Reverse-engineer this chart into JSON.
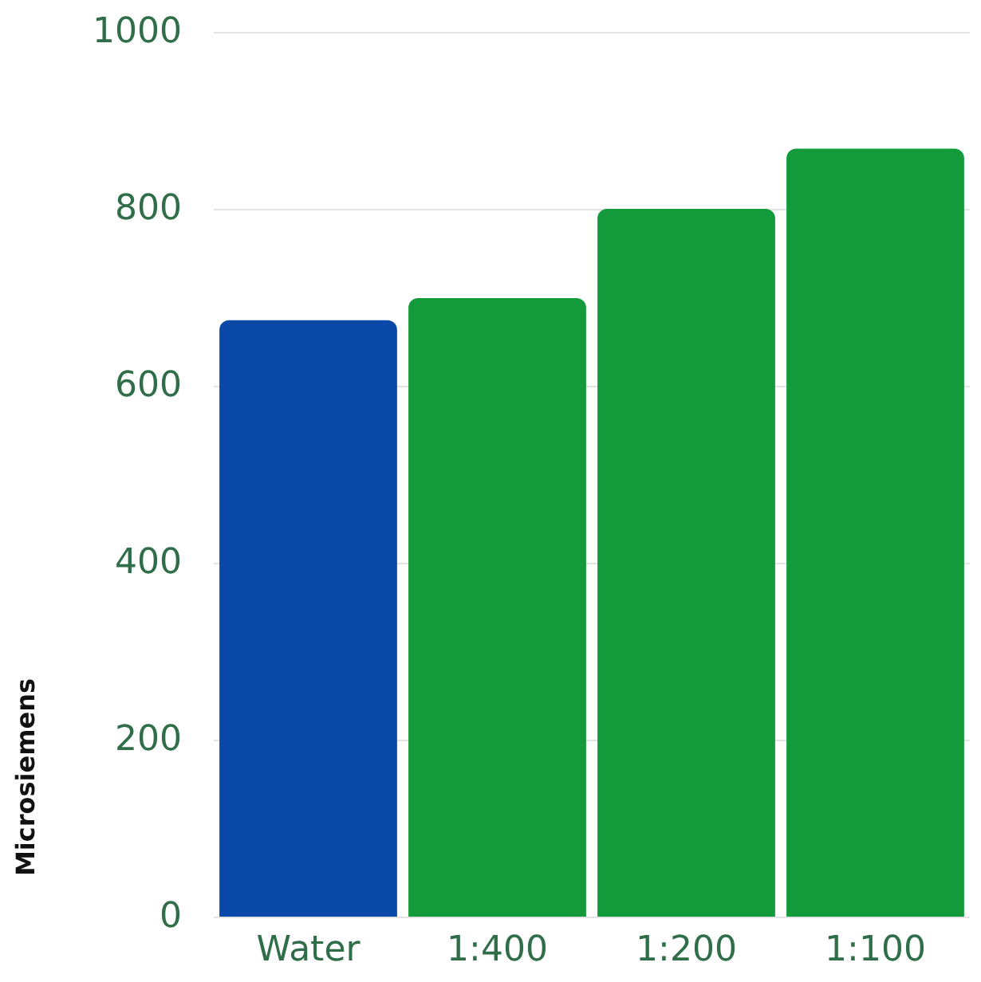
{
  "chart_data": {
    "type": "bar",
    "ylabel": "Microsiemens",
    "categories": [
      "Water",
      "1:400",
      "1:200",
      "1:100"
    ],
    "values": [
      674,
      699,
      800,
      868
    ],
    "colors": [
      "#0a49a8",
      "#139a3a",
      "#139a3a",
      "#139a3a"
    ],
    "ylim": [
      0,
      1000
    ],
    "yticks": [
      0,
      200,
      400,
      600,
      800,
      1000
    ],
    "grid": "y"
  }
}
